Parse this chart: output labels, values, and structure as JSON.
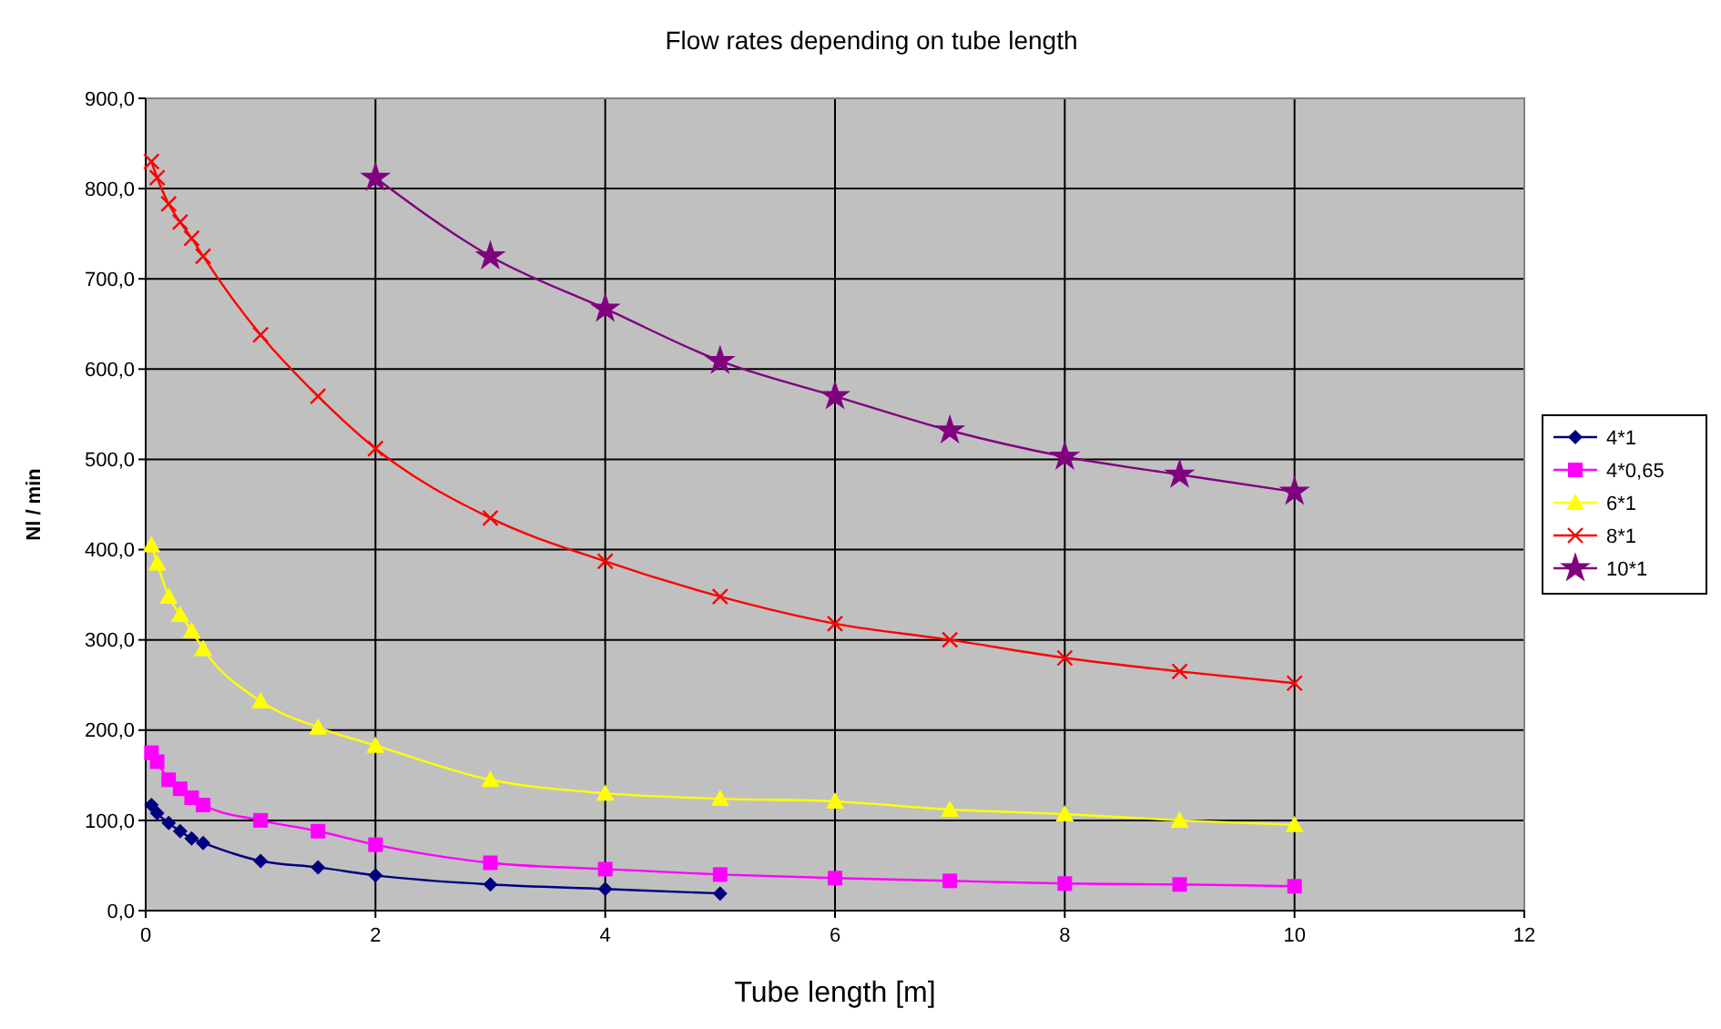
{
  "chart_data": {
    "type": "line",
    "title": "Flow rates depending on tube length",
    "xlabel": "Tube length [m]",
    "ylabel": "Nl / min",
    "xlim": [
      0,
      12
    ],
    "xticks": [
      0,
      2,
      4,
      6,
      8,
      10,
      12
    ],
    "ylim": [
      0,
      900
    ],
    "yticks": [
      {
        "value": 0,
        "label": "0,0"
      },
      {
        "value": 100,
        "label": "100,0"
      },
      {
        "value": 200,
        "label": "200,0"
      },
      {
        "value": 300,
        "label": "300,0"
      },
      {
        "value": 400,
        "label": "400,0"
      },
      {
        "value": 500,
        "label": "500,0"
      },
      {
        "value": 600,
        "label": "600,0"
      },
      {
        "value": 700,
        "label": "700,0"
      },
      {
        "value": 800,
        "label": "800,0"
      },
      {
        "value": 900,
        "label": "900,0"
      }
    ],
    "grid": true,
    "legend": "right",
    "series": [
      {
        "name": "4*1",
        "color": "#000080",
        "marker": "diamond",
        "x": [
          0.05,
          0.1,
          0.2,
          0.3,
          0.4,
          0.5,
          1,
          1.5,
          2,
          3,
          4,
          5
        ],
        "values": [
          117,
          108,
          97,
          88,
          80,
          75,
          55,
          48,
          39,
          29,
          24,
          19
        ]
      },
      {
        "name": "4*0,65",
        "color": "#ff00ff",
        "marker": "square",
        "x": [
          0.05,
          0.1,
          0.2,
          0.3,
          0.4,
          0.5,
          1,
          1.5,
          2,
          3,
          4,
          5,
          6,
          7,
          8,
          9,
          10
        ],
        "values": [
          175,
          165,
          145,
          135,
          125,
          117,
          100,
          88,
          73,
          53,
          46,
          40,
          36,
          33,
          30,
          29,
          27
        ]
      },
      {
        "name": "6*1",
        "color": "#ffff00",
        "marker": "triangle",
        "x": [
          0.05,
          0.1,
          0.2,
          0.3,
          0.4,
          0.5,
          1,
          1.5,
          2,
          3,
          4,
          5,
          6,
          7,
          8,
          9,
          10
        ],
        "values": [
          405,
          385,
          348,
          328,
          310,
          290,
          232,
          203,
          183,
          145,
          130,
          124,
          121,
          112,
          107,
          100,
          95
        ]
      },
      {
        "name": "8*1",
        "color": "#ff0000",
        "marker": "cross",
        "x": [
          0.05,
          0.1,
          0.2,
          0.3,
          0.4,
          0.5,
          1,
          1.5,
          2,
          3,
          4,
          5,
          6,
          7,
          8,
          9,
          10
        ],
        "values": [
          830,
          812,
          783,
          763,
          745,
          725,
          638,
          570,
          512,
          435,
          387,
          348,
          318,
          300,
          280,
          265,
          252
        ]
      },
      {
        "name": "10*1",
        "color": "#800080",
        "marker": "star",
        "x": [
          2,
          3,
          4,
          5,
          6,
          7,
          8,
          9,
          10
        ],
        "values": [
          812,
          725,
          667,
          609,
          570,
          532,
          503,
          483,
          464
        ]
      }
    ]
  }
}
